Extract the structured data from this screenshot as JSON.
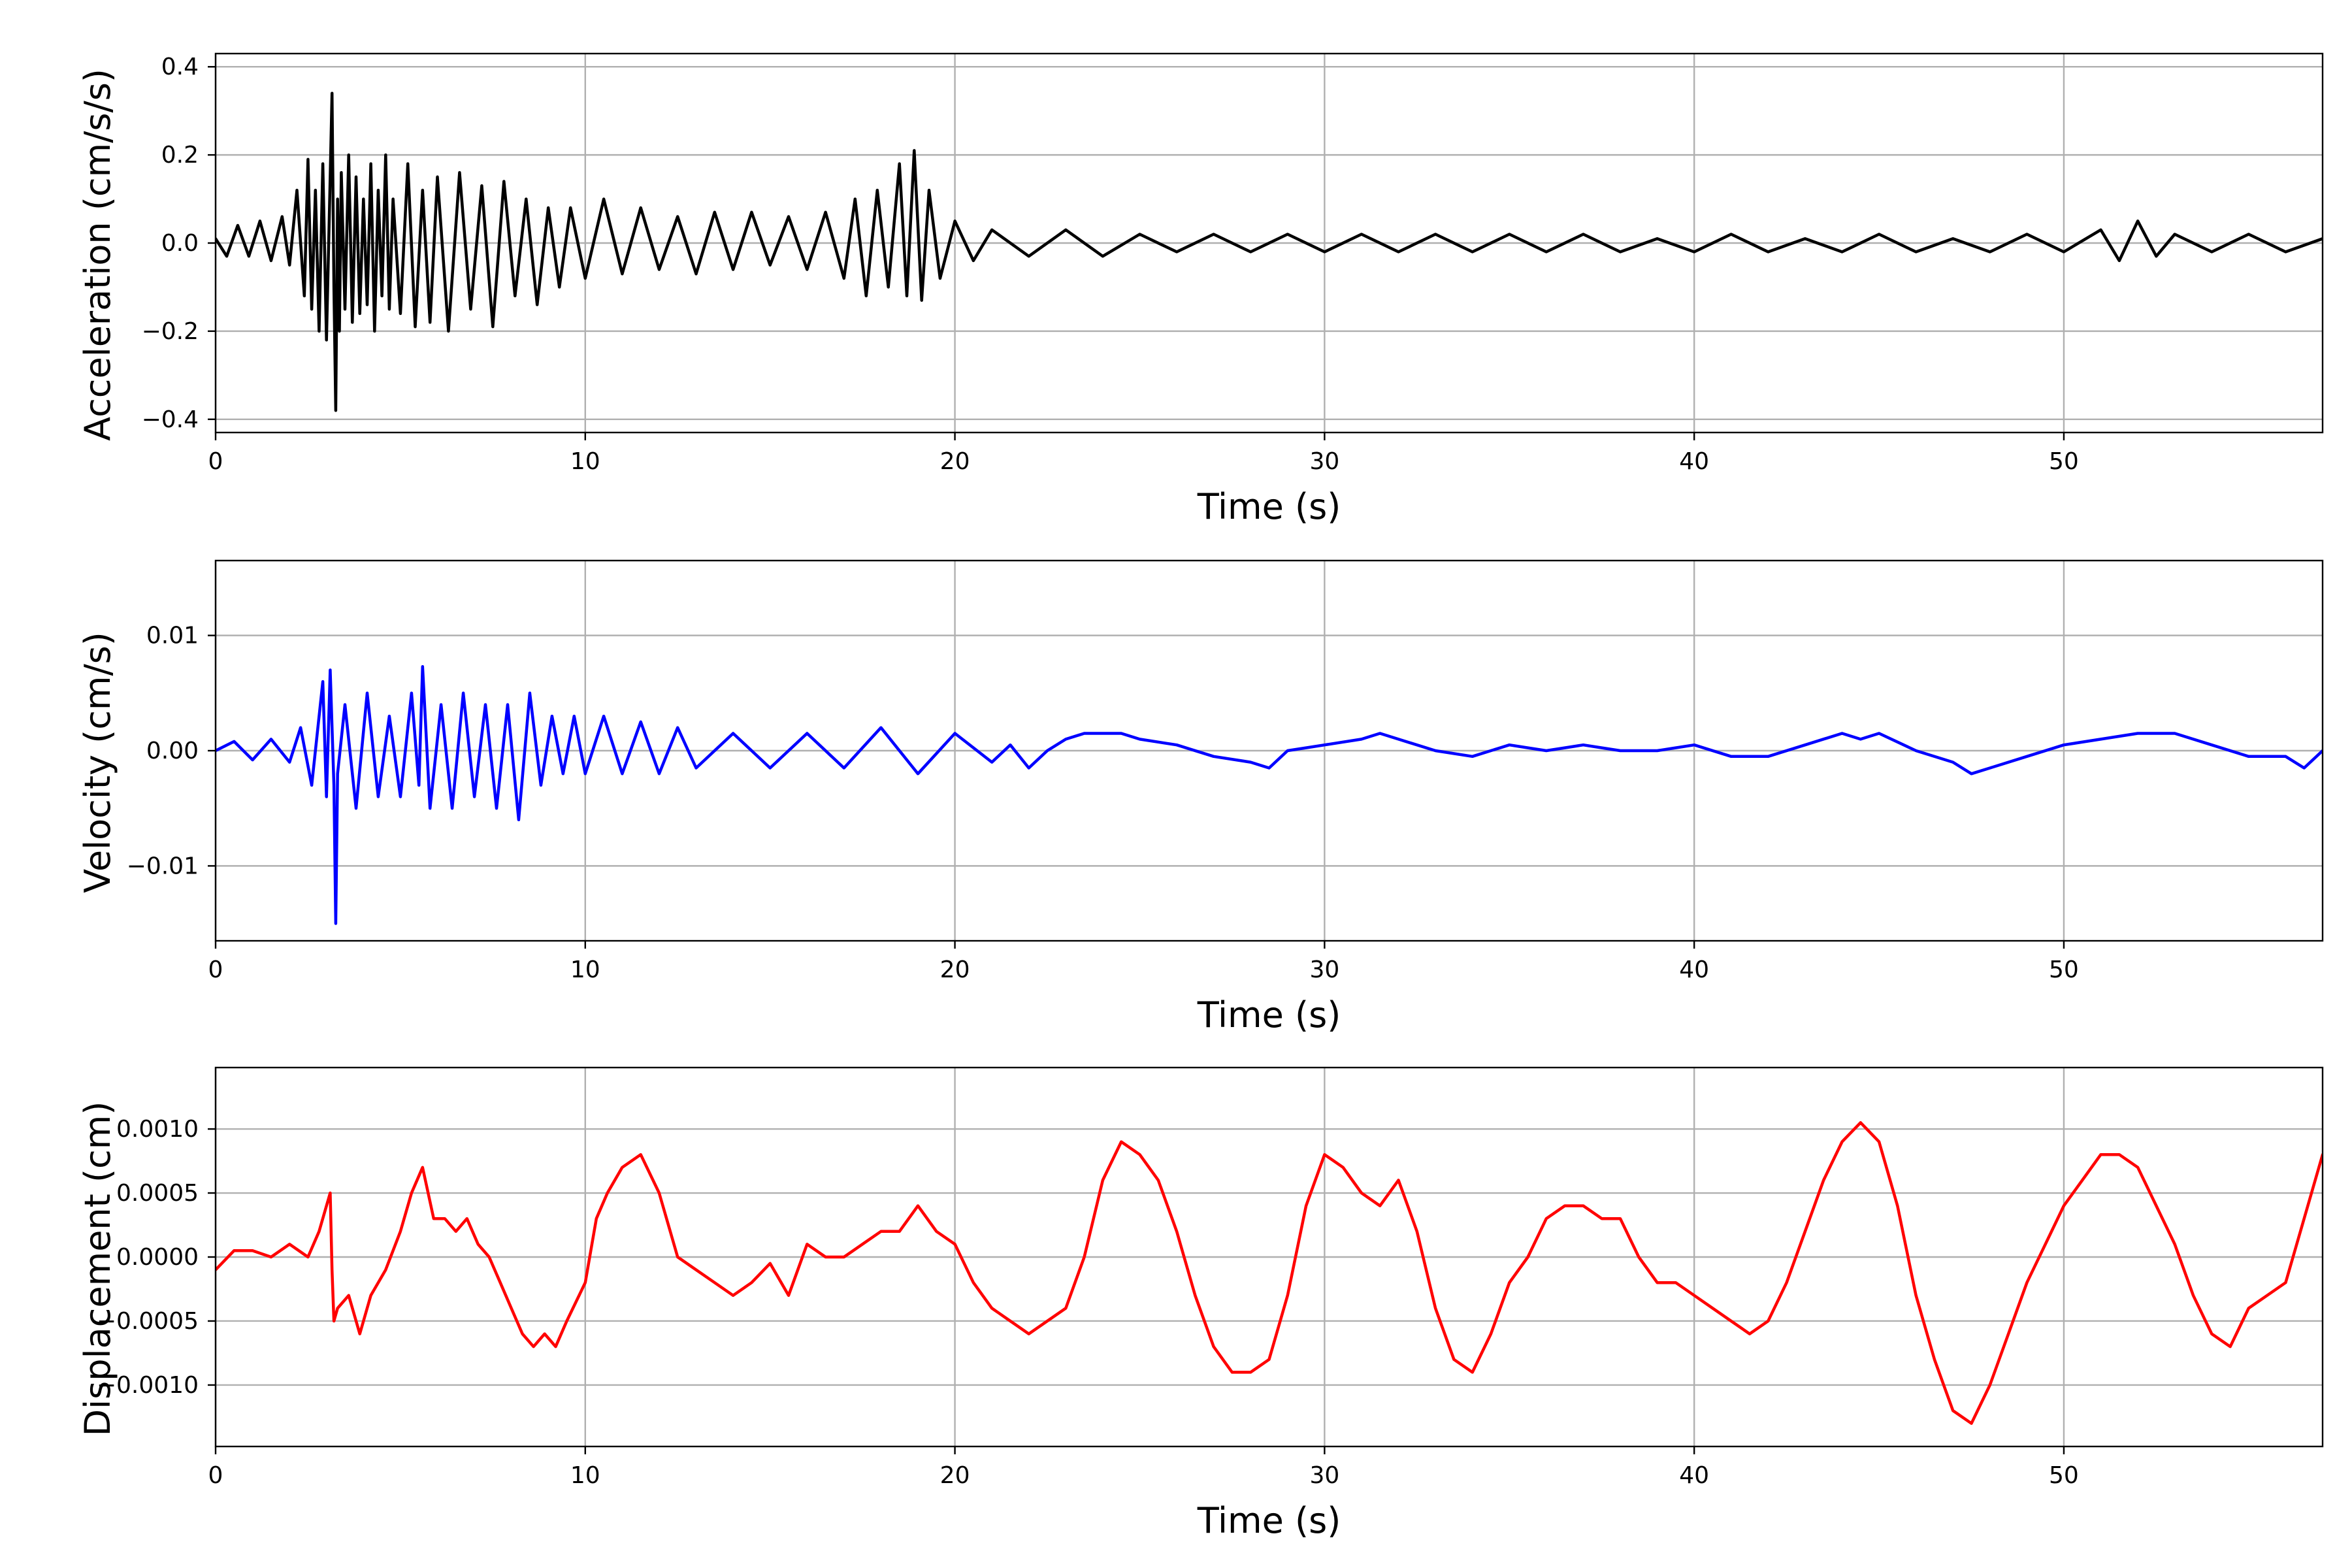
{
  "chart_data": [
    {
      "type": "line",
      "xlabel": "Time (s)",
      "ylabel": "Acceleration (cm/s/s)",
      "xlim": [
        0,
        57
      ],
      "ylim": [
        -0.43,
        0.43
      ],
      "xticks": [
        0,
        10,
        20,
        30,
        40,
        50
      ],
      "xtick_labels": [
        "0",
        "10",
        "20",
        "30",
        "40",
        "50"
      ],
      "yticks": [
        -0.4,
        -0.2,
        0.0,
        0.2,
        0.4
      ],
      "ytick_labels": [
        "−0.4",
        "−0.2",
        "0.0",
        "0.2",
        "0.4"
      ],
      "grid": true,
      "series": [
        {
          "color": "#000000",
          "x": [
            0,
            0.3,
            0.6,
            0.9,
            1.2,
            1.5,
            1.8,
            2.0,
            2.2,
            2.4,
            2.5,
            2.6,
            2.7,
            2.8,
            2.9,
            3.0,
            3.1,
            3.15,
            3.2,
            3.25,
            3.3,
            3.35,
            3.4,
            3.5,
            3.6,
            3.7,
            3.8,
            3.9,
            4.0,
            4.1,
            4.2,
            4.3,
            4.4,
            4.5,
            4.6,
            4.7,
            4.8,
            5.0,
            5.2,
            5.4,
            5.6,
            5.8,
            6.0,
            6.3,
            6.6,
            6.9,
            7.2,
            7.5,
            7.8,
            8.1,
            8.4,
            8.7,
            9.0,
            9.3,
            9.6,
            10.0,
            10.5,
            11.0,
            11.5,
            12.0,
            12.5,
            13.0,
            13.5,
            14.0,
            14.5,
            15.0,
            15.5,
            16.0,
            16.5,
            17.0,
            17.3,
            17.6,
            17.9,
            18.2,
            18.5,
            18.7,
            18.9,
            19.1,
            19.3,
            19.6,
            20.0,
            20.5,
            21.0,
            22.0,
            23.0,
            24.0,
            25.0,
            26.0,
            27.0,
            28.0,
            29.0,
            30.0,
            31.0,
            32.0,
            33.0,
            34.0,
            35.0,
            36.0,
            37.0,
            38.0,
            39.0,
            40.0,
            41.0,
            42.0,
            43.0,
            44.0,
            45.0,
            46.0,
            47.0,
            48.0,
            49.0,
            50.0,
            51.0,
            51.5,
            52.0,
            52.5,
            53.0,
            54.0,
            55.0,
            56.0,
            57.0
          ],
          "y": [
            0.01,
            -0.03,
            0.04,
            -0.03,
            0.05,
            -0.04,
            0.06,
            -0.05,
            0.12,
            -0.12,
            0.19,
            -0.15,
            0.12,
            -0.2,
            0.18,
            -0.22,
            0.15,
            0.34,
            -0.1,
            -0.38,
            0.1,
            -0.2,
            0.16,
            -0.15,
            0.2,
            -0.18,
            0.15,
            -0.16,
            0.1,
            -0.14,
            0.18,
            -0.2,
            0.12,
            -0.12,
            0.2,
            -0.15,
            0.1,
            -0.16,
            0.18,
            -0.19,
            0.12,
            -0.18,
            0.15,
            -0.2,
            0.16,
            -0.15,
            0.13,
            -0.19,
            0.14,
            -0.12,
            0.1,
            -0.14,
            0.08,
            -0.1,
            0.08,
            -0.08,
            0.1,
            -0.07,
            0.08,
            -0.06,
            0.06,
            -0.07,
            0.07,
            -0.06,
            0.07,
            -0.05,
            0.06,
            -0.06,
            0.07,
            -0.08,
            0.1,
            -0.12,
            0.12,
            -0.1,
            0.18,
            -0.12,
            0.21,
            -0.13,
            0.12,
            -0.08,
            0.05,
            -0.04,
            0.03,
            -0.03,
            0.03,
            -0.03,
            0.02,
            -0.02,
            0.02,
            -0.02,
            0.02,
            -0.02,
            0.02,
            -0.02,
            0.02,
            -0.02,
            0.02,
            -0.02,
            0.02,
            -0.02,
            0.01,
            -0.02,
            0.02,
            -0.02,
            0.01,
            -0.02,
            0.02,
            -0.02,
            0.01,
            -0.02,
            0.02,
            -0.02,
            0.03,
            -0.04,
            0.05,
            -0.03,
            0.02,
            -0.02,
            0.02,
            -0.02,
            0.01
          ]
        }
      ]
    },
    {
      "type": "line",
      "xlabel": "Time (s)",
      "ylabel": "Velocity (cm/s)",
      "xlim": [
        0,
        57
      ],
      "ylim": [
        -0.0165,
        0.0165
      ],
      "xticks": [
        0,
        10,
        20,
        30,
        40,
        50
      ],
      "xtick_labels": [
        "0",
        "10",
        "20",
        "30",
        "40",
        "50"
      ],
      "yticks": [
        -0.01,
        0.0,
        0.01
      ],
      "ytick_labels": [
        "−0.01",
        "0.00",
        "0.01"
      ],
      "grid": true,
      "series": [
        {
          "color": "#0000ff",
          "x": [
            0,
            0.5,
            1.0,
            1.5,
            2.0,
            2.3,
            2.6,
            2.9,
            3.0,
            3.1,
            3.2,
            3.25,
            3.3,
            3.5,
            3.8,
            4.1,
            4.4,
            4.7,
            5.0,
            5.3,
            5.5,
            5.6,
            5.8,
            6.1,
            6.4,
            6.7,
            7.0,
            7.3,
            7.6,
            7.9,
            8.2,
            8.5,
            8.8,
            9.1,
            9.4,
            9.7,
            10.0,
            10.5,
            11.0,
            11.5,
            12.0,
            12.5,
            13.0,
            14.0,
            15.0,
            16.0,
            17.0,
            18.0,
            19.0,
            20.0,
            21.0,
            21.5,
            22.0,
            22.5,
            23.0,
            23.5,
            24.0,
            24.5,
            25.0,
            26.0,
            27.0,
            28.0,
            28.5,
            29.0,
            30.0,
            31.0,
            31.5,
            32.0,
            33.0,
            34.0,
            35.0,
            36.0,
            37.0,
            38.0,
            39.0,
            40.0,
            41.0,
            42.0,
            43.0,
            44.0,
            44.5,
            45.0,
            46.0,
            47.0,
            47.5,
            48.0,
            49.0,
            50.0,
            51.0,
            52.0,
            53.0,
            54.0,
            55.0,
            56.0,
            56.5,
            57.0
          ],
          "y": [
            0.0,
            0.0008,
            -0.0008,
            0.001,
            -0.001,
            0.002,
            -0.003,
            0.006,
            -0.004,
            0.007,
            -0.003,
            -0.015,
            -0.002,
            0.004,
            -0.005,
            0.005,
            -0.004,
            0.003,
            -0.004,
            0.005,
            -0.003,
            0.0073,
            -0.005,
            0.004,
            -0.005,
            0.005,
            -0.004,
            0.004,
            -0.005,
            0.004,
            -0.006,
            0.005,
            -0.003,
            0.003,
            -0.002,
            0.003,
            -0.002,
            0.003,
            -0.002,
            0.0025,
            -0.002,
            0.002,
            -0.0015,
            0.0015,
            -0.0015,
            0.0015,
            -0.0015,
            0.002,
            -0.002,
            0.0015,
            -0.001,
            0.0005,
            -0.0015,
            0.0,
            0.001,
            0.0015,
            0.0015,
            0.0015,
            0.001,
            0.0005,
            -0.0005,
            -0.001,
            -0.0015,
            0.0,
            0.0005,
            0.001,
            0.0015,
            0.001,
            0.0,
            -0.0005,
            0.0005,
            0.0,
            0.0005,
            0.0,
            0.0,
            0.0005,
            -0.0005,
            -0.0005,
            0.0005,
            0.0015,
            0.001,
            0.0015,
            0.0,
            -0.001,
            -0.002,
            -0.0015,
            -0.0005,
            0.0005,
            0.001,
            0.0015,
            0.0015,
            0.0005,
            -0.0005,
            -0.0005,
            -0.0015,
            0.0
          ]
        }
      ]
    },
    {
      "type": "line",
      "xlabel": "Time (s)",
      "ylabel": "Displacement (cm)",
      "xlim": [
        0,
        57
      ],
      "ylim": [
        -0.00148,
        0.00148
      ],
      "xticks": [
        0,
        10,
        20,
        30,
        40,
        50
      ],
      "xtick_labels": [
        "0",
        "10",
        "20",
        "30",
        "40",
        "50"
      ],
      "yticks": [
        -0.001,
        -0.0005,
        0.0,
        0.0005,
        0.001
      ],
      "ytick_labels": [
        "−0.0010",
        "−0.0005",
        "0.0000",
        "0.0005",
        "0.0010"
      ],
      "grid": true,
      "series": [
        {
          "color": "#ff0000",
          "x": [
            0,
            0.5,
            1.0,
            1.5,
            2.0,
            2.5,
            2.8,
            3.0,
            3.1,
            3.15,
            3.2,
            3.3,
            3.6,
            3.9,
            4.2,
            4.6,
            5.0,
            5.3,
            5.6,
            5.9,
            6.2,
            6.5,
            6.8,
            7.1,
            7.4,
            7.7,
            8.0,
            8.3,
            8.6,
            8.9,
            9.2,
            9.5,
            10.0,
            10.3,
            10.6,
            11.0,
            11.5,
            12.0,
            12.5,
            13.0,
            13.5,
            14.0,
            14.5,
            15.0,
            15.5,
            16.0,
            16.5,
            17.0,
            17.5,
            18.0,
            18.5,
            19.0,
            19.5,
            20.0,
            20.5,
            21.0,
            21.5,
            22.0,
            22.5,
            23.0,
            23.5,
            24.0,
            24.5,
            25.0,
            25.5,
            26.0,
            26.5,
            27.0,
            27.5,
            28.0,
            28.5,
            29.0,
            29.5,
            30.0,
            30.5,
            31.0,
            31.5,
            32.0,
            32.5,
            33.0,
            33.5,
            34.0,
            34.5,
            35.0,
            35.5,
            36.0,
            36.5,
            37.0,
            37.5,
            38.0,
            38.5,
            39.0,
            39.5,
            40.0,
            40.5,
            41.0,
            41.5,
            42.0,
            42.5,
            43.0,
            43.5,
            44.0,
            44.5,
            45.0,
            45.5,
            46.0,
            46.5,
            47.0,
            47.5,
            48.0,
            48.5,
            49.0,
            49.5,
            50.0,
            50.5,
            51.0,
            51.5,
            52.0,
            52.5,
            53.0,
            53.5,
            54.0,
            54.5,
            55.0,
            55.5,
            56.0,
            56.5,
            57.0
          ],
          "y": [
            -0.0001,
            5e-05,
            5e-05,
            0.0,
            0.0001,
            0.0,
            0.0002,
            0.0004,
            0.0005,
            -0.0001,
            -0.0005,
            -0.0004,
            -0.0003,
            -0.0006,
            -0.0003,
            -0.0001,
            0.0002,
            0.0005,
            0.0007,
            0.0003,
            0.0003,
            0.0002,
            0.0003,
            0.0001,
            0.0,
            -0.0002,
            -0.0004,
            -0.0006,
            -0.0007,
            -0.0006,
            -0.0007,
            -0.0005,
            -0.0002,
            0.0003,
            0.0005,
            0.0007,
            0.0008,
            0.0005,
            0.0,
            -0.0001,
            -0.0002,
            -0.0003,
            -0.0002,
            -5e-05,
            -0.0003,
            0.0001,
            0.0,
            0.0,
            0.0001,
            0.0002,
            0.0002,
            0.0004,
            0.0002,
            0.0001,
            -0.0002,
            -0.0004,
            -0.0005,
            -0.0006,
            -0.0005,
            -0.0004,
            0.0,
            0.0006,
            0.0009,
            0.0008,
            0.0006,
            0.0002,
            -0.0003,
            -0.0007,
            -0.0009,
            -0.0009,
            -0.0008,
            -0.0003,
            0.0004,
            0.0008,
            0.0007,
            0.0005,
            0.0004,
            0.0006,
            0.0002,
            -0.0004,
            -0.0008,
            -0.0009,
            -0.0006,
            -0.0002,
            0.0,
            0.0003,
            0.0004,
            0.0004,
            0.0003,
            0.0003,
            0.0,
            -0.0002,
            -0.0002,
            -0.0003,
            -0.0004,
            -0.0005,
            -0.0006,
            -0.0005,
            -0.0002,
            0.0002,
            0.0006,
            0.0009,
            0.00105,
            0.0009,
            0.0004,
            -0.0003,
            -0.0008,
            -0.0012,
            -0.0013,
            -0.001,
            -0.0006,
            -0.0002,
            0.0001,
            0.0004,
            0.0006,
            0.0008,
            0.0008,
            0.0007,
            0.0004,
            0.0001,
            -0.0003,
            -0.0006,
            -0.0007,
            -0.0004,
            -0.0003,
            -0.0002,
            0.0003,
            0.0008
          ]
        }
      ]
    }
  ]
}
